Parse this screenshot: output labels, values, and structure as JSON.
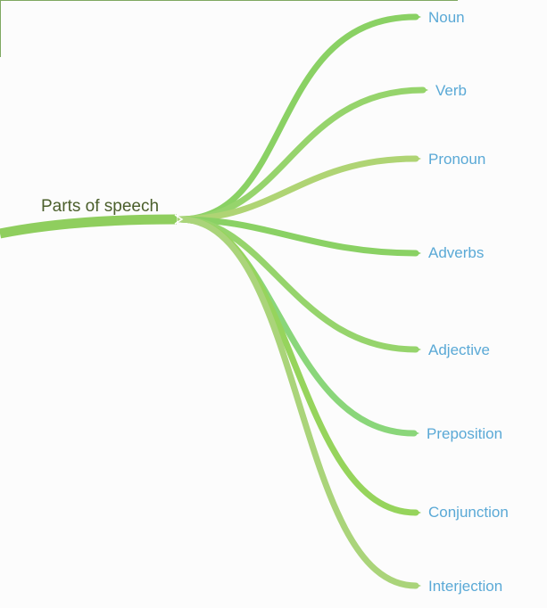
{
  "root": {
    "label": "Parts of speech",
    "color": "#8fce5e"
  },
  "branches": [
    {
      "label": "Noun",
      "color": "#8ad164"
    },
    {
      "label": "Verb",
      "color": "#96d46c"
    },
    {
      "label": "Pronoun",
      "color": "#afd474"
    },
    {
      "label": "Adverbs",
      "color": "#8ad164"
    },
    {
      "label": "Adjective",
      "color": "#96d46c"
    },
    {
      "label": "Preposition",
      "color": "#8ad67a"
    },
    {
      "label": "Conjunction",
      "color": "#96d45c"
    },
    {
      "label": "Interjection",
      "color": "#aad47a"
    }
  ],
  "colors": {
    "label_text": "#5aa9d6",
    "root_text": "#4b5f2b",
    "frame": "#7fa862"
  }
}
